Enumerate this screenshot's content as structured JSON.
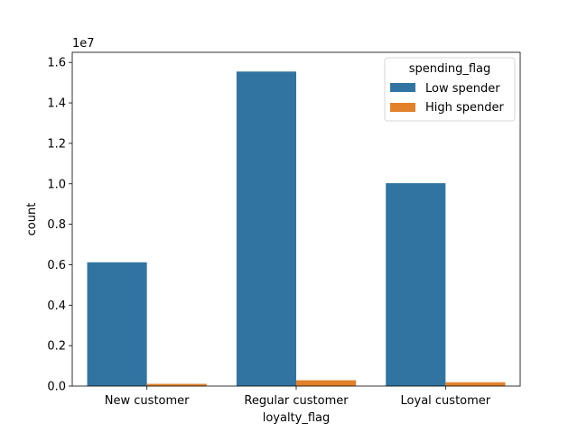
{
  "chart_data": {
    "type": "bar",
    "title": "",
    "xlabel": "loyalty_flag",
    "ylabel": "count",
    "y_offset_label": "1e7",
    "y_scale": 10000000,
    "ylim": [
      0,
      16500000
    ],
    "yticks": [
      0,
      2000000,
      4000000,
      6000000,
      8000000,
      10000000,
      12000000,
      14000000,
      16000000
    ],
    "ytick_labels": [
      "0.0",
      "0.2",
      "0.4",
      "0.6",
      "0.8",
      "1.0",
      "1.2",
      "1.4",
      "1.6"
    ],
    "categories": [
      "New customer",
      "Regular customer",
      "Loyal customer"
    ],
    "series": [
      {
        "name": "Low spender",
        "color": "#3274a1",
        "values": [
          6120000,
          15550000,
          10030000
        ]
      },
      {
        "name": "High spender",
        "color": "#e1812c",
        "values": [
          110000,
          290000,
          190000
        ]
      }
    ],
    "legend": {
      "title": "spending_flag",
      "placement": "top-right"
    },
    "grid": false
  }
}
